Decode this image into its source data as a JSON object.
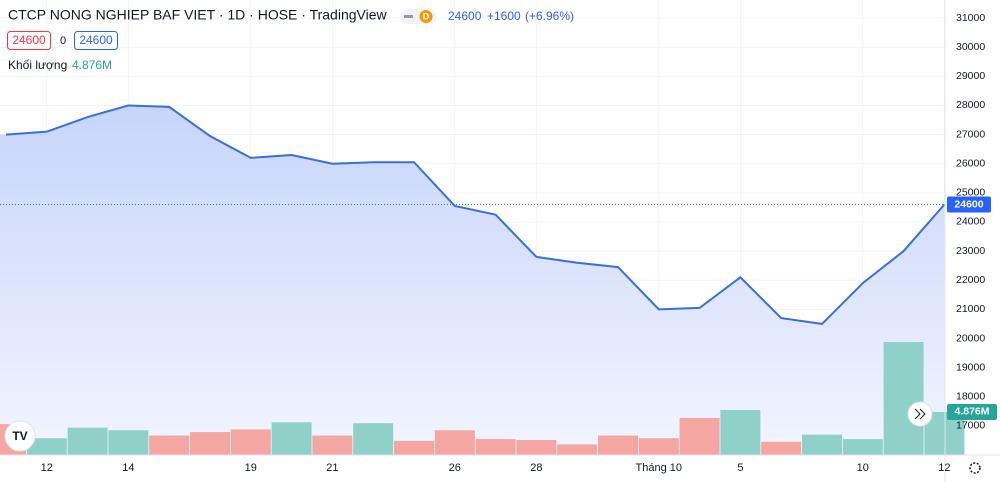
{
  "chart_data": {
    "type": "line",
    "title": "CTCP NONG NGHIEP BAF VIET · 1D · HOSE · TradingView",
    "badge": "D",
    "change": "+1600",
    "change_pct": "(+6.96%)",
    "open_text": "24600",
    "mid_text": "0",
    "volume_label": "Khối lượng",
    "categories": [
      null,
      "12",
      null,
      "14",
      null,
      null,
      "19",
      null,
      "21",
      null,
      null,
      "26",
      null,
      "28",
      null,
      null,
      "Tháng 10",
      null,
      "5",
      null,
      null,
      "10",
      null,
      "12"
    ],
    "values": [
      27000,
      27100,
      27600,
      28000,
      27950,
      26950,
      26200,
      26300,
      26000,
      26050,
      26050,
      24550,
      24250,
      22800,
      22600,
      22450,
      21000,
      21050,
      22100,
      20700,
      20500,
      21900,
      23000,
      24600
    ],
    "color": "#3a6fd8",
    "ylim": [
      16000,
      31620
    ],
    "yticks": [
      17000,
      18000,
      19000,
      20000,
      21000,
      22000,
      23000,
      24000,
      25000,
      26000,
      27000,
      28000,
      29000,
      30000,
      31000
    ],
    "grid": true,
    "volume": {
      "values": [
        3500000,
        1900000,
        3100000,
        2800000,
        2200000,
        2600000,
        2900000,
        3700000,
        2200000,
        3600000,
        1600000,
        2800000,
        1800000,
        1700000,
        1200000,
        2200000,
        1900000,
        4200000,
        5100000,
        1500000,
        2300000,
        1800000,
        12800000,
        4876000
      ],
      "value_labels": [
        null,
        null,
        null,
        null,
        null,
        null,
        null,
        null,
        null,
        null,
        null,
        null,
        null,
        null,
        null,
        null,
        null,
        null,
        null,
        null,
        null,
        null,
        null,
        "4.876M"
      ],
      "colors": [
        "#f4a6a2",
        "#8fd1c8",
        "#8fd1c8",
        "#8fd1c8",
        "#f4a6a2",
        "#f4a6a2",
        "#f4a6a2",
        "#8fd1c8",
        "#f4a6a2",
        "#8fd1c8",
        "#f4a6a2",
        "#f4a6a2",
        "#f4a6a2",
        "#f4a6a2",
        "#f4a6a2",
        "#f4a6a2",
        "#f4a6a2",
        "#f4a6a2",
        "#8fd1c8",
        "#f4a6a2",
        "#8fd1c8",
        "#8fd1c8",
        "#8fd1c8",
        "#8fd1c8"
      ]
    }
  }
}
